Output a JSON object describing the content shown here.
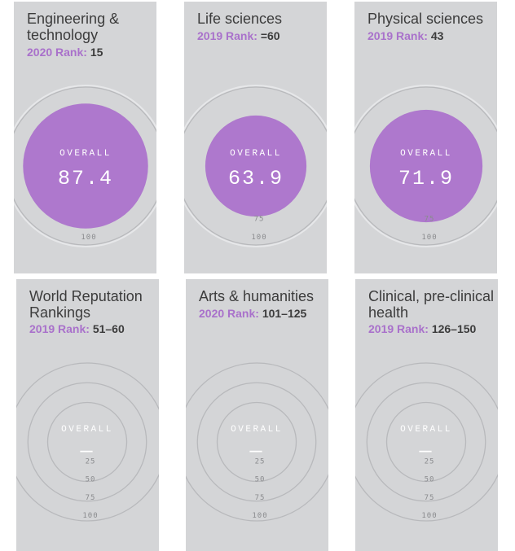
{
  "cards": [
    {
      "title": "Engineering & technology",
      "rank_label": "2020 Rank:",
      "rank_value": "15",
      "overall_label": "OVERALL",
      "score": "87.4",
      "score_fraction": 0.874,
      "ticks": [
        "100"
      ]
    },
    {
      "title": "Life sciences",
      "rank_label": "2019 Rank:",
      "rank_value": "=60",
      "overall_label": "OVERALL",
      "score": "63.9",
      "score_fraction": 0.639,
      "ticks": [
        "75",
        "100"
      ]
    },
    {
      "title": "Physical sciences",
      "rank_label": "2019 Rank:",
      "rank_value": "43",
      "overall_label": "OVERALL",
      "score": "71.9",
      "score_fraction": 0.719,
      "ticks": [
        "75",
        "100"
      ]
    },
    {
      "title": "World Reputation Rankings",
      "rank_label": "2019 Rank:",
      "rank_value": "51–60",
      "overall_label": "OVERALL",
      "score": "—",
      "score_fraction": 0,
      "ticks": [
        "25",
        "50",
        "75",
        "100"
      ]
    },
    {
      "title": "Arts & humanities",
      "rank_label": "2020 Rank:",
      "rank_value": "101–125",
      "overall_label": "OVERALL",
      "score": "—",
      "score_fraction": 0,
      "ticks": [
        "25",
        "50",
        "75",
        "100"
      ]
    },
    {
      "title": "Clinical, pre-clinical & health",
      "rank_label": "2019 Rank:",
      "rank_value": "126–150",
      "overall_label": "OVERALL",
      "score": "—",
      "score_fraction": 0,
      "ticks": [
        "25",
        "50",
        "75",
        "100"
      ]
    }
  ],
  "colors": {
    "card_bg": "#d4d5d7",
    "accent_purple": "#ae78cd",
    "rank_label_purple": "#a971cb",
    "text_dark": "#3c3c3c",
    "ring_gray": "#b8b9bc",
    "tick_gray": "#8a8b8e"
  }
}
